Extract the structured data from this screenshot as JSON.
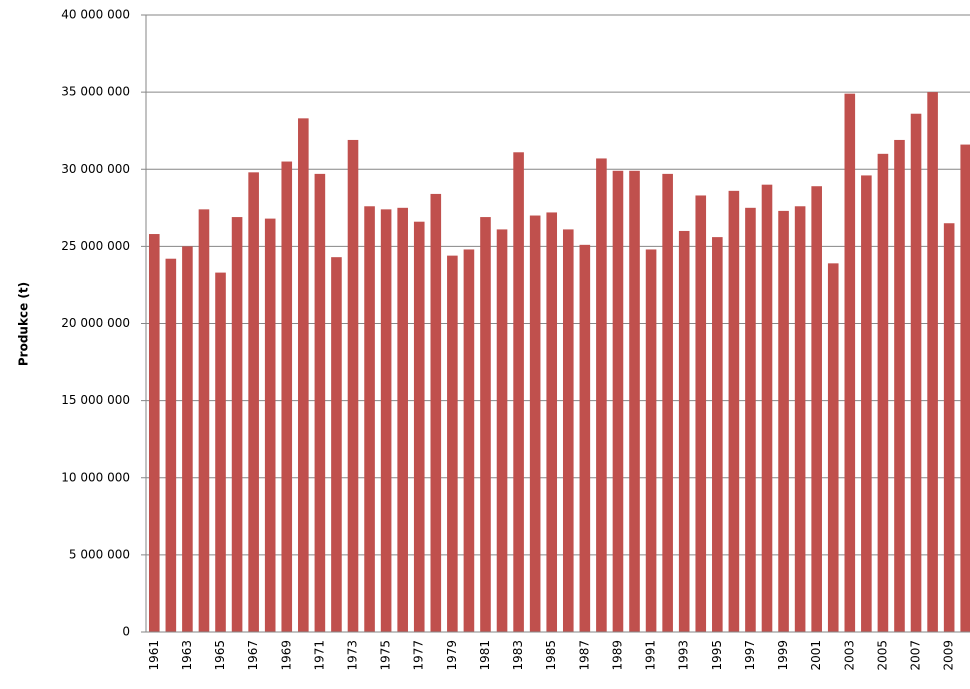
{
  "chart_data": {
    "type": "bar",
    "y_label": "Produkce (t)",
    "categories": [
      "1961",
      null,
      "1963",
      null,
      "1965",
      null,
      "1967",
      null,
      "1969",
      null,
      "1971",
      null,
      "1973",
      null,
      "1975",
      null,
      "1977",
      null,
      "1979",
      null,
      "1981",
      null,
      "1983",
      null,
      "1985",
      null,
      "1987",
      null,
      "1989",
      null,
      "1991",
      null,
      "1993",
      null,
      "1995",
      null,
      "1997",
      null,
      "1999",
      null,
      "2001",
      null,
      "2003",
      null,
      "2005",
      null,
      "2007",
      null,
      "2009",
      null
    ],
    "values": [
      25800000,
      24200000,
      25000000,
      27400000,
      23300000,
      26900000,
      29800000,
      26800000,
      30500000,
      33300000,
      29700000,
      24300000,
      31900000,
      27600000,
      27400000,
      27500000,
      26600000,
      28400000,
      24400000,
      24800000,
      26900000,
      26100000,
      31100000,
      27000000,
      27200000,
      26100000,
      25100000,
      30700000,
      29900000,
      29900000,
      24800000,
      29700000,
      26000000,
      28300000,
      25600000,
      28600000,
      27500000,
      29000000,
      27300000,
      27600000,
      28900000,
      23900000,
      34900000,
      29600000,
      31000000,
      31900000,
      33600000,
      35000000,
      26500000,
      31600000
    ],
    "color": "#c0504d",
    "ylim": [
      0,
      40000000
    ],
    "yticks": [
      0,
      {
        "value": 5000000,
        "label": "5 000 000"
      },
      {
        "value": 10000000,
        "label": "10 000 000"
      },
      {
        "value": 15000000,
        "label": "15 000 000"
      },
      {
        "value": 20000000,
        "label": "20 000 000"
      },
      {
        "value": 25000000,
        "label": "25 000 000"
      },
      {
        "value": 30000000,
        "label": "30 000 000"
      },
      {
        "value": 35000000,
        "label": "35 000 000"
      },
      {
        "value": 40000000,
        "label": "40 000 000"
      }
    ],
    "grid": true
  }
}
